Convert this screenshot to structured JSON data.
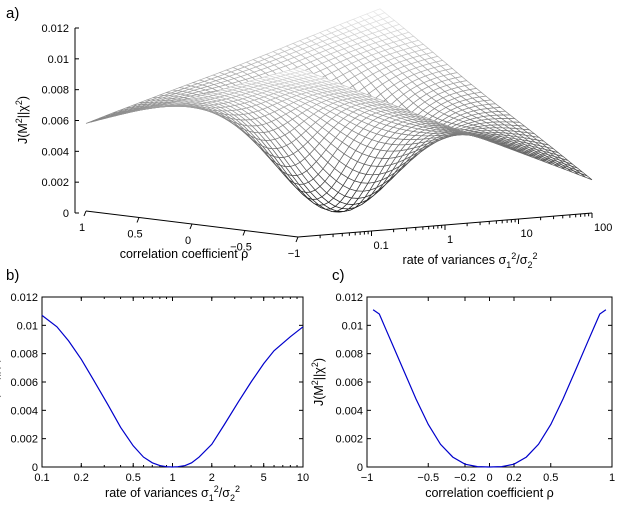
{
  "chart_data": [
    {
      "panel": "a)",
      "type": "surface",
      "zlabel": "J(M²||χ²)",
      "xlabel": "correlation coefficient ρ",
      "ylabel": "rate of variances σ₁²/σ₂²",
      "zlim": [
        0,
        0.012
      ],
      "z_ticks": [
        "0",
        "0.002",
        "0.004",
        "0.006",
        "0.008",
        "0.01",
        "0.012"
      ],
      "rho_ticks": [
        "1",
        "0.5",
        "0",
        "−0.5",
        "−1"
      ],
      "ratio_ticks": [
        "0.1",
        "1",
        "10",
        "100"
      ],
      "rho_range": [
        -1,
        1
      ],
      "ratio_range": [
        0.01,
        100
      ],
      "ratio_scale": "log",
      "minimum": {
        "rho": 0,
        "ratio": 1,
        "value": 0
      },
      "corner_values": [
        {
          "rho": 1,
          "ratio": 0.01,
          "value": 0.0058
        },
        {
          "rho": 1,
          "ratio": 100,
          "value": 0.0118
        },
        {
          "rho": -1,
          "ratio": 0.01,
          "value": 0.0112
        },
        {
          "rho": -1,
          "ratio": 100,
          "value": 0.0022
        }
      ],
      "style": "grayscale wireframe"
    },
    {
      "panel": "b)",
      "type": "line",
      "xlabel": "rate of variances σ₁²/σ₂²",
      "ylabel": "J(M²||χ²)",
      "xscale": "log",
      "xlim": [
        0.1,
        10
      ],
      "ylim": [
        0,
        0.012
      ],
      "x_ticks": [
        "0.1",
        "0.2",
        "0.5",
        "1",
        "2",
        "5",
        "10"
      ],
      "y_ticks": [
        "0",
        "0.002",
        "0.004",
        "0.006",
        "0.008",
        "0.01",
        "0.012"
      ],
      "color": "#0000cc",
      "series": [
        {
          "x": [
            0.1,
            0.13,
            0.16,
            0.2,
            0.25,
            0.32,
            0.4,
            0.5,
            0.6,
            0.7,
            0.8,
            0.9,
            1,
            1.1,
            1.25,
            1.4,
            1.6,
            2,
            2.5,
            3.2,
            4,
            5,
            6,
            8,
            10
          ],
          "y": [
            0.0107,
            0.0099,
            0.0089,
            0.0076,
            0.0061,
            0.0044,
            0.0028,
            0.0015,
            0.0007,
            0.0003,
            0.0001,
            2e-05,
            0,
            2e-05,
            0.0001,
            0.0003,
            0.0007,
            0.0016,
            0.003,
            0.0046,
            0.006,
            0.0073,
            0.0082,
            0.0092,
            0.0099
          ]
        }
      ]
    },
    {
      "panel": "c)",
      "type": "line",
      "xlabel": "correlation coefficient ρ",
      "ylabel": "J(M²||χ²)",
      "xlim": [
        -1,
        1
      ],
      "ylim": [
        0,
        0.012
      ],
      "x_ticks": [
        "−1",
        "−0.5",
        "−0.2",
        "0",
        "0.2",
        "0.5",
        "1"
      ],
      "x_tick_values": [
        -1,
        -0.5,
        -0.2,
        0,
        0.2,
        0.5,
        1
      ],
      "y_ticks": [
        "0",
        "0.002",
        "0.004",
        "0.006",
        "0.008",
        "0.01",
        "0.012"
      ],
      "color": "#0000cc",
      "series": [
        {
          "x": [
            -0.95,
            -0.9,
            -0.85,
            -0.8,
            -0.7,
            -0.6,
            -0.5,
            -0.4,
            -0.3,
            -0.2,
            -0.1,
            0,
            0.1,
            0.2,
            0.3,
            0.4,
            0.5,
            0.6,
            0.7,
            0.8,
            0.85,
            0.9,
            0.95
          ],
          "y": [
            0.0111,
            0.0108,
            0.0098,
            0.0088,
            0.0068,
            0.0048,
            0.003,
            0.0016,
            0.0007,
            0.0002,
            3e-05,
            0,
            3e-05,
            0.0002,
            0.0007,
            0.0016,
            0.003,
            0.0048,
            0.0068,
            0.0088,
            0.0098,
            0.0108,
            0.0111
          ]
        }
      ]
    }
  ]
}
